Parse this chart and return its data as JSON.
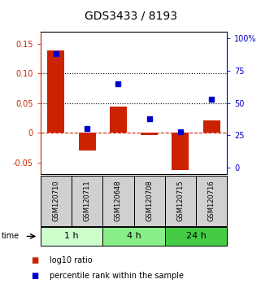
{
  "title": "GDS3433 / 8193",
  "categories": [
    "GSM120710",
    "GSM120711",
    "GSM120648",
    "GSM120708",
    "GSM120715",
    "GSM120716"
  ],
  "log10_ratio": [
    0.138,
    -0.03,
    0.044,
    -0.004,
    -0.063,
    0.02
  ],
  "percentile_rank": [
    88,
    30,
    65,
    38,
    28,
    53
  ],
  "bar_color": "#cc2200",
  "dot_color": "#0000cc",
  "ylim_left": [
    -0.07,
    0.17
  ],
  "ylim_right": [
    -5,
    105
  ],
  "yticks_left": [
    -0.05,
    0.0,
    0.05,
    0.1,
    0.15
  ],
  "ytick_labels_left": [
    "-0.05",
    "0",
    "0.05",
    "0.10",
    "0.15"
  ],
  "yticks_right": [
    0,
    25,
    50,
    75,
    100
  ],
  "ytick_labels_right": [
    "0",
    "25",
    "50",
    "75",
    "100%"
  ],
  "dotted_lines": [
    0.05,
    0.1
  ],
  "groups": [
    {
      "label": "1 h",
      "indices": [
        0,
        1
      ],
      "color": "#ccffcc"
    },
    {
      "label": "4 h",
      "indices": [
        2,
        3
      ],
      "color": "#88ee88"
    },
    {
      "label": "24 h",
      "indices": [
        4,
        5
      ],
      "color": "#44cc44"
    }
  ],
  "time_label": "time",
  "legend_items": [
    {
      "color": "#cc2200",
      "label": "log10 ratio"
    },
    {
      "color": "#0000cc",
      "label": "percentile rank within the sample"
    }
  ],
  "bar_width": 0.55,
  "dot_size": 22,
  "background_color": "#ffffff",
  "sample_box_color": "#d0d0d0",
  "title_fontsize": 10,
  "tick_fontsize": 7,
  "legend_fontsize": 7,
  "sample_fontsize": 6,
  "group_fontsize": 8
}
